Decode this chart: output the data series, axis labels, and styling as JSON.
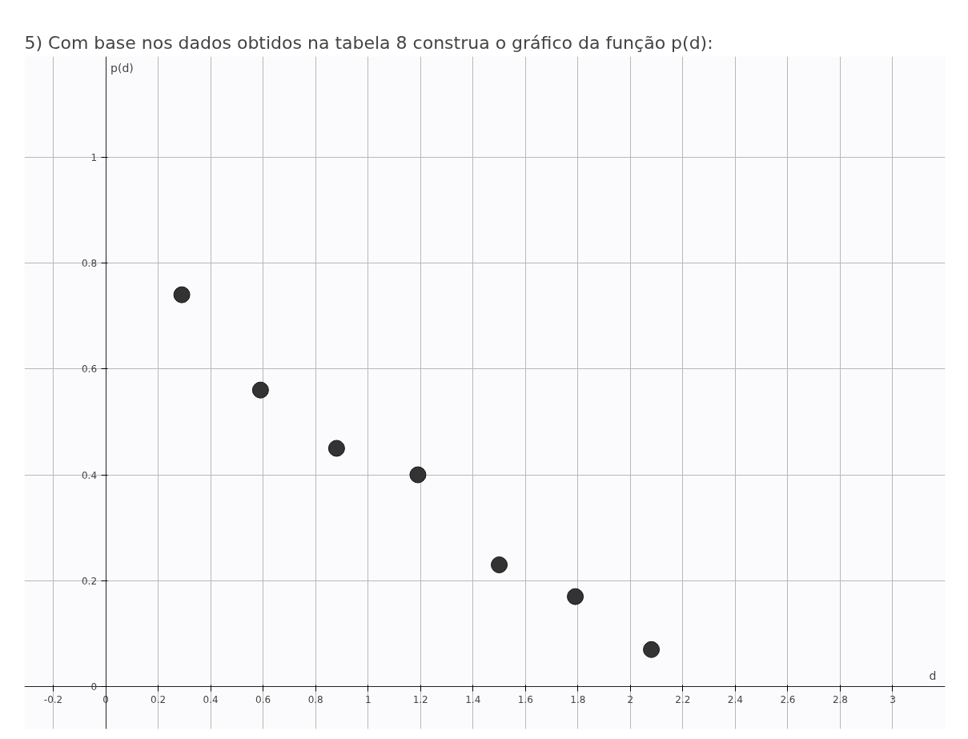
{
  "chart_data": {
    "type": "scatter",
    "title": "5) Com base nos dados obtidos na tabela 8 construa o gráfico da função p(d):",
    "xlabel": "d",
    "ylabel": "p(d)",
    "x": [
      0.29,
      0.59,
      0.88,
      1.19,
      1.5,
      1.79,
      2.08
    ],
    "values": [
      0.74,
      0.56,
      0.45,
      0.4,
      0.23,
      0.17,
      0.07
    ],
    "color": "#333333",
    "marker": "circle",
    "grid": true,
    "xlim": [
      -0.31,
      3.2
    ],
    "ylim": [
      -0.08,
      1.19
    ],
    "xticks": [
      -0.2,
      0,
      0.2,
      0.4,
      0.6,
      0.8,
      1,
      1.2,
      1.4,
      1.6,
      1.8,
      2,
      2.2,
      2.4,
      2.6,
      2.8,
      3
    ],
    "yticks": [
      0,
      0.2,
      0.4,
      0.6,
      0.8,
      1
    ]
  }
}
